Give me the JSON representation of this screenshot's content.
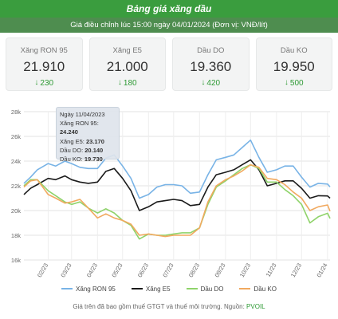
{
  "header": {
    "title": "Bảng giá xăng dầu"
  },
  "subheader": {
    "text": "Giá điều chỉnh lúc 15:00 ngày 04/01/2024 (Đơn vị: VNĐ/lít)"
  },
  "cards": [
    {
      "name": "Xăng RON 95",
      "price": "21.910",
      "change": "230",
      "direction": "down"
    },
    {
      "name": "Xăng E5",
      "price": "21.000",
      "change": "180",
      "direction": "down"
    },
    {
      "name": "Dầu DO",
      "price": "19.360",
      "change": "420",
      "direction": "down"
    },
    {
      "name": "Dầu KO",
      "price": "19.950",
      "change": "500",
      "direction": "down"
    }
  ],
  "colors": {
    "ron95": "#78b3e6",
    "e5": "#1a1a1a",
    "do": "#8fd36a",
    "ko": "#f1a95f",
    "header": "#3a9d3e",
    "change": "#2e9a35"
  },
  "tooltip": {
    "date": "Ngày 11/04/2023",
    "rows": [
      {
        "label": "Xăng RON 95: ",
        "value": "24.240"
      },
      {
        "label": "Xăng E5: ",
        "value": "23.170"
      },
      {
        "label": "Dầu DO: ",
        "value": "20.140"
      },
      {
        "label": "Dầu KO: ",
        "value": "19.730"
      }
    ]
  },
  "footer": {
    "text": "Giá trên đã bao gồm thuế GTGT và thuế môi trường. Nguồn: ",
    "source": "PVOIL"
  },
  "chart_data": {
    "type": "line",
    "ylim": [
      16000,
      28000
    ],
    "yticks": [
      16000,
      18000,
      20000,
      22000,
      24000,
      26000,
      28000
    ],
    "ytick_labels": [
      "16k",
      "18k",
      "20k",
      "22k",
      "24k",
      "26k",
      "28k"
    ],
    "x_start": "2023-01-03",
    "x_end": "2024-01-04",
    "xticks": [
      "2023-02-01",
      "2023-03-01",
      "2023-04-01",
      "2023-05-01",
      "2023-06-01",
      "2023-07-01",
      "2023-08-01",
      "2023-09-01",
      "2023-10-01",
      "2023-11-01",
      "2023-12-01",
      "2024-01-01"
    ],
    "xtick_labels": [
      "02/23",
      "03/23",
      "04/23",
      "05/23",
      "06/23",
      "07/23",
      "08/23",
      "09/23",
      "10/23",
      "11/23",
      "12/23",
      "01/24"
    ],
    "grid": true,
    "legend": "bottom",
    "series": [
      {
        "name": "Xăng RON 95",
        "key": "ron95",
        "points": [
          [
            "2023-01-03",
            22200
          ],
          [
            "2023-01-11",
            22700
          ],
          [
            "2023-01-19",
            23300
          ],
          [
            "2023-02-01",
            23800
          ],
          [
            "2023-02-10",
            23600
          ],
          [
            "2023-02-21",
            24000
          ],
          [
            "2023-03-01",
            23800
          ],
          [
            "2023-03-11",
            23500
          ],
          [
            "2023-03-21",
            23400
          ],
          [
            "2023-04-01",
            23400
          ],
          [
            "2023-04-11",
            24240
          ],
          [
            "2023-04-21",
            24500
          ],
          [
            "2023-05-01",
            23600
          ],
          [
            "2023-05-11",
            22600
          ],
          [
            "2023-05-21",
            21000
          ],
          [
            "2023-06-01",
            21300
          ],
          [
            "2023-06-11",
            21900
          ],
          [
            "2023-06-21",
            22100
          ],
          [
            "2023-07-01",
            22100
          ],
          [
            "2023-07-11",
            22000
          ],
          [
            "2023-07-21",
            21400
          ],
          [
            "2023-08-01",
            21500
          ],
          [
            "2023-08-11",
            22900
          ],
          [
            "2023-08-21",
            24100
          ],
          [
            "2023-09-01",
            24300
          ],
          [
            "2023-09-11",
            24500
          ],
          [
            "2023-09-21",
            25100
          ],
          [
            "2023-10-01",
            25700
          ],
          [
            "2023-10-11",
            24300
          ],
          [
            "2023-10-21",
            23100
          ],
          [
            "2023-11-01",
            23300
          ],
          [
            "2023-11-11",
            23600
          ],
          [
            "2023-11-21",
            23600
          ],
          [
            "2023-12-01",
            22700
          ],
          [
            "2023-12-11",
            21900
          ],
          [
            "2023-12-21",
            22200
          ],
          [
            "2024-01-01",
            22140
          ],
          [
            "2024-01-04",
            21910
          ]
        ]
      },
      {
        "name": "Xăng E5",
        "key": "e5",
        "points": [
          [
            "2023-01-03",
            21300
          ],
          [
            "2023-01-11",
            21800
          ],
          [
            "2023-01-19",
            22100
          ],
          [
            "2023-02-01",
            22600
          ],
          [
            "2023-02-10",
            22500
          ],
          [
            "2023-02-21",
            22800
          ],
          [
            "2023-03-01",
            22500
          ],
          [
            "2023-03-11",
            22300
          ],
          [
            "2023-03-21",
            22200
          ],
          [
            "2023-04-01",
            22300
          ],
          [
            "2023-04-11",
            23170
          ],
          [
            "2023-04-21",
            23400
          ],
          [
            "2023-05-01",
            22600
          ],
          [
            "2023-05-11",
            21600
          ],
          [
            "2023-05-21",
            20000
          ],
          [
            "2023-06-01",
            20300
          ],
          [
            "2023-06-11",
            20700
          ],
          [
            "2023-06-21",
            20800
          ],
          [
            "2023-07-01",
            20900
          ],
          [
            "2023-07-11",
            20800
          ],
          [
            "2023-07-21",
            20400
          ],
          [
            "2023-08-01",
            20500
          ],
          [
            "2023-08-11",
            21900
          ],
          [
            "2023-08-21",
            22900
          ],
          [
            "2023-09-01",
            23100
          ],
          [
            "2023-09-11",
            23300
          ],
          [
            "2023-09-21",
            23700
          ],
          [
            "2023-10-01",
            24100
          ],
          [
            "2023-10-11",
            23300
          ],
          [
            "2023-10-21",
            22000
          ],
          [
            "2023-11-01",
            22200
          ],
          [
            "2023-11-11",
            22400
          ],
          [
            "2023-11-21",
            22400
          ],
          [
            "2023-12-01",
            21800
          ],
          [
            "2023-12-11",
            21000
          ],
          [
            "2023-12-21",
            21200
          ],
          [
            "2024-01-01",
            21180
          ],
          [
            "2024-01-04",
            21000
          ]
        ]
      },
      {
        "name": "Dầu DO",
        "key": "do",
        "points": [
          [
            "2023-01-03",
            22000
          ],
          [
            "2023-01-11",
            22500
          ],
          [
            "2023-01-19",
            22500
          ],
          [
            "2023-02-01",
            21600
          ],
          [
            "2023-02-10",
            21200
          ],
          [
            "2023-02-21",
            20700
          ],
          [
            "2023-03-01",
            20500
          ],
          [
            "2023-03-11",
            20700
          ],
          [
            "2023-03-21",
            20200
          ],
          [
            "2023-04-01",
            19800
          ],
          [
            "2023-04-11",
            20140
          ],
          [
            "2023-04-21",
            19800
          ],
          [
            "2023-05-01",
            19200
          ],
          [
            "2023-05-11",
            18800
          ],
          [
            "2023-05-21",
            17700
          ],
          [
            "2023-06-01",
            18100
          ],
          [
            "2023-06-11",
            18000
          ],
          [
            "2023-06-21",
            18000
          ],
          [
            "2023-07-01",
            18100
          ],
          [
            "2023-07-11",
            18200
          ],
          [
            "2023-07-21",
            18200
          ],
          [
            "2023-08-01",
            18600
          ],
          [
            "2023-08-11",
            20500
          ],
          [
            "2023-08-21",
            21900
          ],
          [
            "2023-09-01",
            22400
          ],
          [
            "2023-09-11",
            22900
          ],
          [
            "2023-09-21",
            23400
          ],
          [
            "2023-10-01",
            23700
          ],
          [
            "2023-10-11",
            23400
          ],
          [
            "2023-10-21",
            22300
          ],
          [
            "2023-11-01",
            22300
          ],
          [
            "2023-11-11",
            21700
          ],
          [
            "2023-11-21",
            21200
          ],
          [
            "2023-12-01",
            20500
          ],
          [
            "2023-12-11",
            19000
          ],
          [
            "2023-12-21",
            19500
          ],
          [
            "2024-01-01",
            19780
          ],
          [
            "2024-01-04",
            19360
          ]
        ]
      },
      {
        "name": "Dầu KO",
        "key": "ko",
        "points": [
          [
            "2023-01-03",
            21900
          ],
          [
            "2023-01-11",
            22400
          ],
          [
            "2023-01-19",
            22500
          ],
          [
            "2023-02-01",
            21300
          ],
          [
            "2023-02-10",
            21000
          ],
          [
            "2023-02-21",
            20600
          ],
          [
            "2023-03-01",
            20700
          ],
          [
            "2023-03-11",
            20900
          ],
          [
            "2023-03-21",
            20200
          ],
          [
            "2023-04-01",
            19400
          ],
          [
            "2023-04-11",
            19730
          ],
          [
            "2023-04-21",
            19400
          ],
          [
            "2023-05-01",
            19200
          ],
          [
            "2023-05-11",
            18900
          ],
          [
            "2023-05-21",
            18000
          ],
          [
            "2023-06-01",
            18100
          ],
          [
            "2023-06-11",
            18000
          ],
          [
            "2023-06-21",
            17900
          ],
          [
            "2023-07-01",
            18000
          ],
          [
            "2023-07-11",
            18000
          ],
          [
            "2023-07-21",
            18000
          ],
          [
            "2023-08-01",
            18600
          ],
          [
            "2023-08-11",
            20700
          ],
          [
            "2023-08-21",
            22000
          ],
          [
            "2023-09-01",
            22500
          ],
          [
            "2023-09-11",
            22800
          ],
          [
            "2023-09-21",
            23200
          ],
          [
            "2023-10-01",
            23700
          ],
          [
            "2023-10-11",
            23500
          ],
          [
            "2023-10-21",
            22600
          ],
          [
            "2023-11-01",
            22500
          ],
          [
            "2023-11-11",
            22100
          ],
          [
            "2023-11-21",
            21500
          ],
          [
            "2023-12-01",
            21000
          ],
          [
            "2023-12-11",
            20000
          ],
          [
            "2023-12-21",
            20300
          ],
          [
            "2024-01-01",
            20450
          ],
          [
            "2024-01-04",
            19950
          ]
        ]
      }
    ]
  }
}
